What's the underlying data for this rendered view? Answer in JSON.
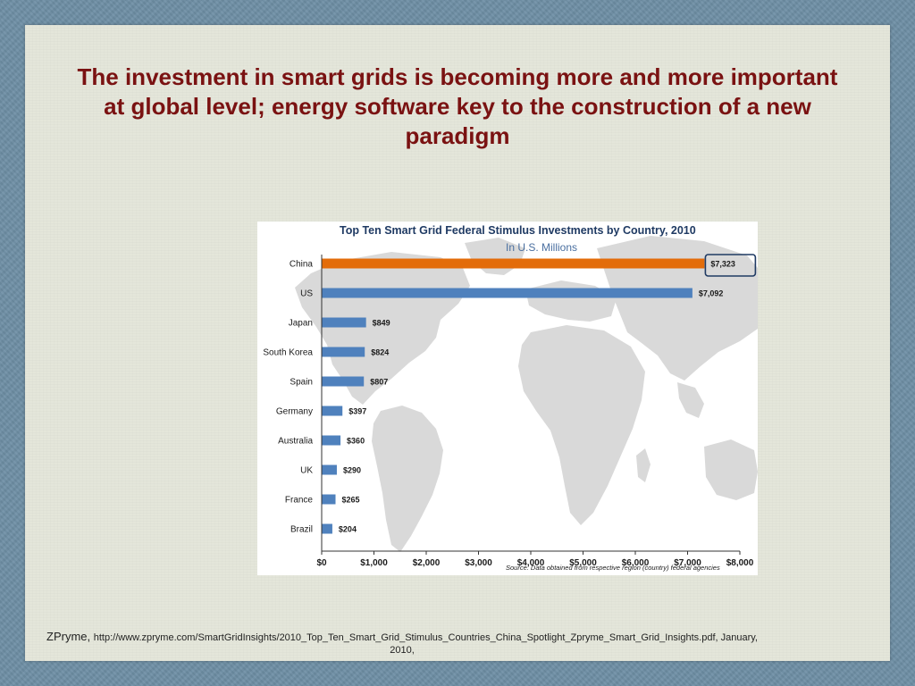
{
  "slide": {
    "title_line1": "The investment in smart grids is becoming more and more important",
    "title_line2": "at global level; energy software key to the construction of a new",
    "title_line3": "paradigm",
    "footer_author": "ZPryme, ",
    "footer_url": "http://www.zpryme.com/SmartGridInsights/2010_Top_Ten_Smart_Grid_Stimulus_Countries_China_Spotlight_Zpryme_Smart_Grid_Insights.pdf, January,",
    "footer_year": "2010,"
  },
  "chart_data": {
    "type": "bar",
    "orientation": "horizontal",
    "title": "Top Ten Smart Grid Federal Stimulus Investments by Country, 2010",
    "subtitle": "In U.S. Millions",
    "categories": [
      "China",
      "US",
      "Japan",
      "South Korea",
      "Spain",
      "Germany",
      "Australia",
      "UK",
      "France",
      "Brazil"
    ],
    "values": [
      7323,
      7092,
      849,
      824,
      807,
      397,
      360,
      290,
      265,
      204
    ],
    "value_labels": [
      "$7,323",
      "$7,092",
      "$849",
      "$824",
      "$807",
      "$397",
      "$360",
      "$290",
      "$265",
      "$204"
    ],
    "xlim": [
      0,
      8000
    ],
    "x_ticks": [
      0,
      1000,
      2000,
      3000,
      4000,
      5000,
      6000,
      7000,
      8000
    ],
    "x_tick_labels": [
      "$0",
      "$1,000",
      "$2,000",
      "$3,000",
      "$4,000",
      "$5,000",
      "$6,000",
      "$7,000",
      "$8,000"
    ],
    "source": "Source: Data obtained from respective region (country) federal agencies",
    "colors": {
      "highlight": "#e36c0a",
      "bar": "#4f81bd",
      "highlight_box": "#1f3a63"
    },
    "highlight_index": 0,
    "background": "world map"
  }
}
